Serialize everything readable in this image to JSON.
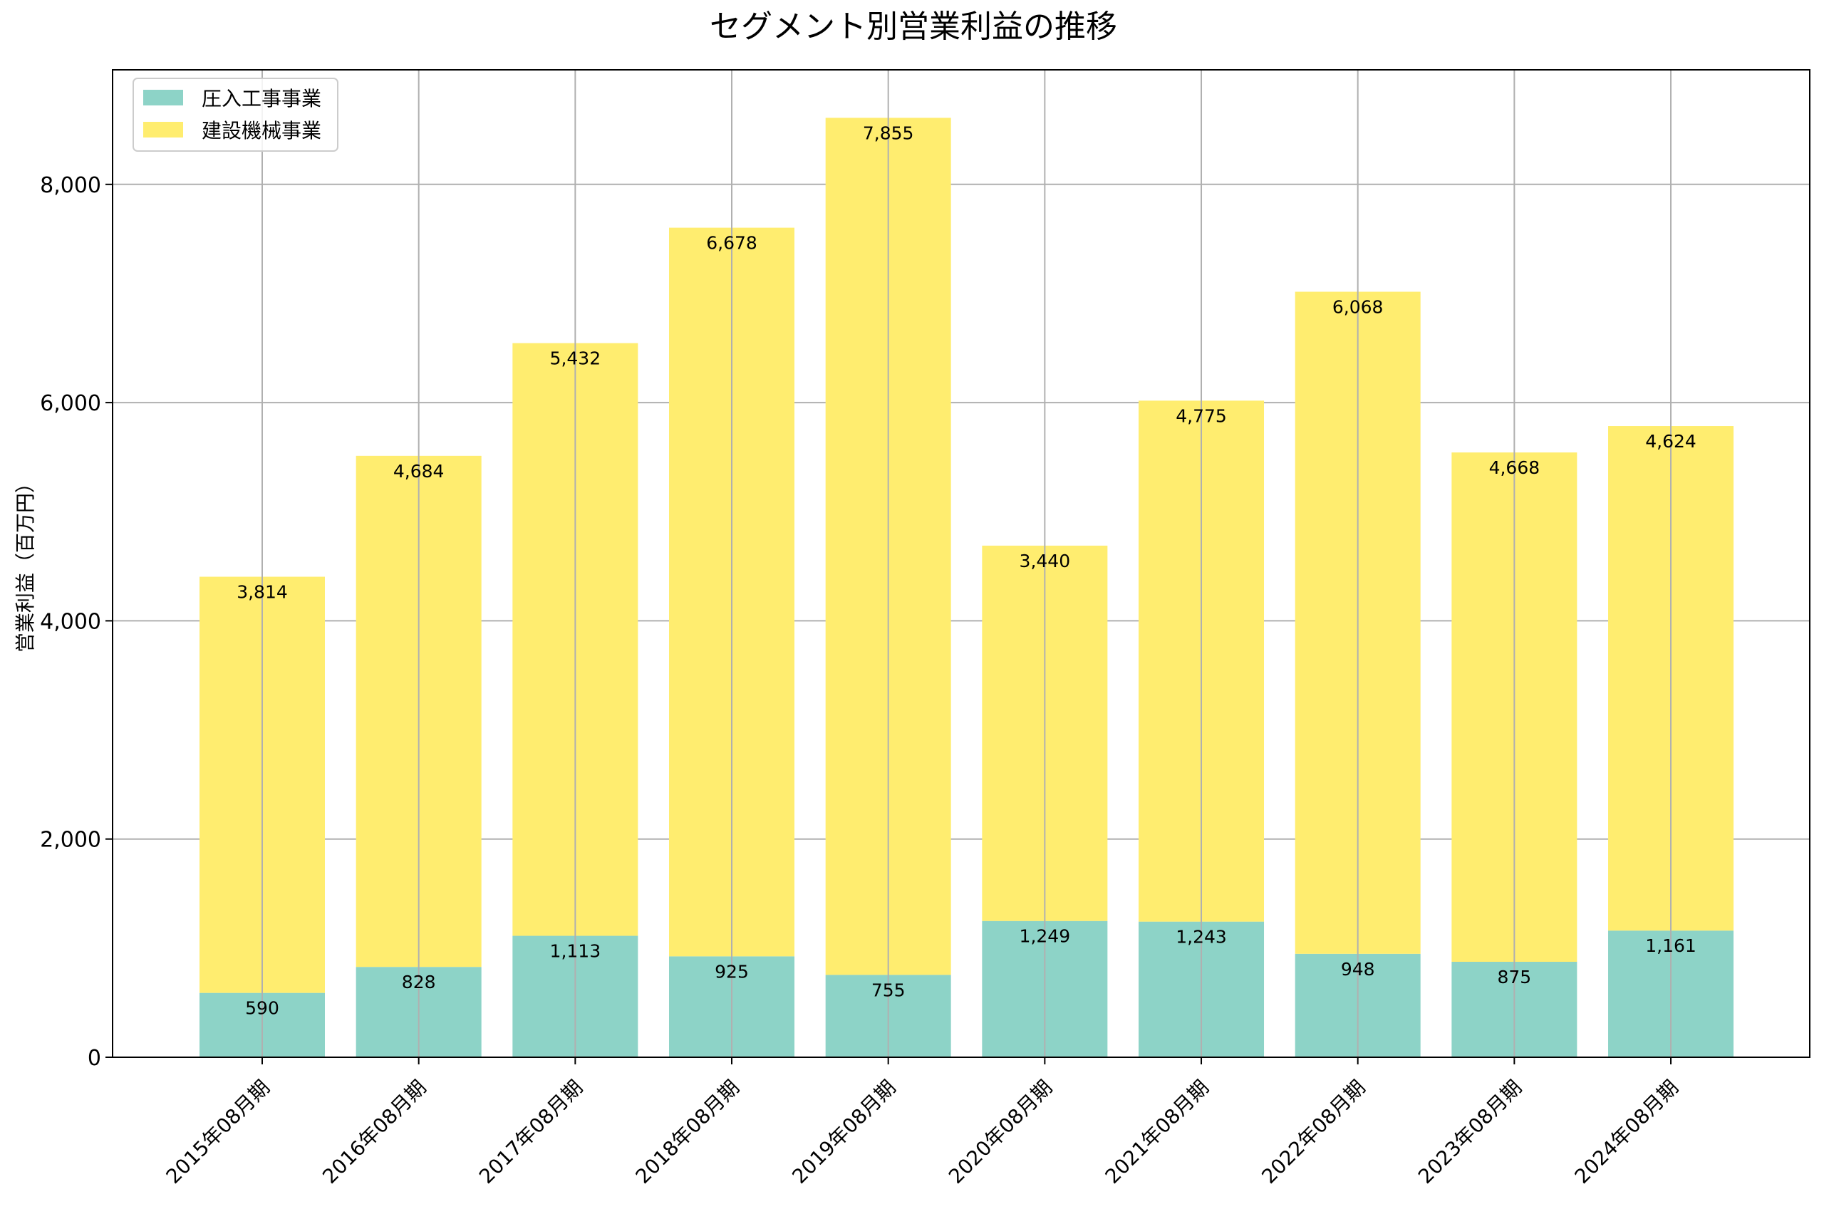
{
  "chart_data": {
    "type": "bar",
    "stacked": true,
    "title": "セグメント別営業利益の推移",
    "xlabel": "",
    "ylabel": "営業利益（百万円）",
    "ylim": [
      0,
      9050
    ],
    "yticks": [
      0,
      2000,
      4000,
      6000,
      8000
    ],
    "ytick_labels": [
      "0",
      "2,000",
      "4,000",
      "6,000",
      "8,000"
    ],
    "grid": true,
    "legend_position": "top-left",
    "categories": [
      "2015年08月期",
      "2016年08月期",
      "2017年08月期",
      "2018年08月期",
      "2019年08月期",
      "2020年08月期",
      "2021年08月期",
      "2022年08月期",
      "2023年08月期",
      "2024年08月期"
    ],
    "series": [
      {
        "name": "圧入工事事業",
        "color": "#8dd3c7",
        "values": [
          590,
          828,
          1113,
          925,
          755,
          1249,
          1243,
          948,
          875,
          1161
        ],
        "labels": [
          "590",
          "828",
          "1,113",
          "925",
          "755",
          "1,249",
          "1,243",
          "948",
          "875",
          "1,161"
        ]
      },
      {
        "name": "建設機械事業",
        "color": "#ffed6f",
        "values": [
          3814,
          4684,
          5432,
          6678,
          7855,
          3440,
          4775,
          6068,
          4668,
          4624
        ],
        "labels": [
          "3,814",
          "4,684",
          "5,432",
          "6,678",
          "7,855",
          "3,440",
          "4,775",
          "6,068",
          "4,668",
          "4,624"
        ]
      }
    ]
  }
}
